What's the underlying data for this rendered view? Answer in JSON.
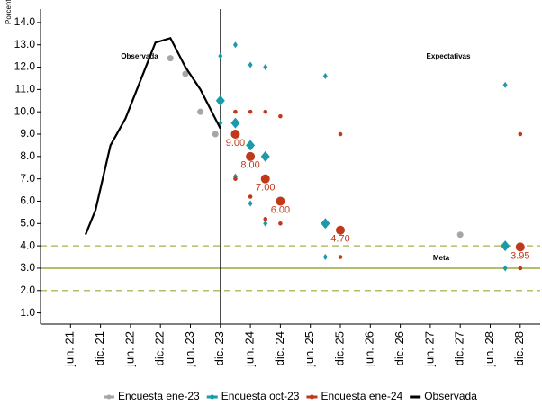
{
  "chart_data": {
    "type": "scatter",
    "y_label": "Porcentaje",
    "annotations": {
      "observed": "Observada",
      "expectations": "Expectativas",
      "target": "Meta"
    },
    "target_line": 3,
    "band_lines": [
      2,
      4
    ],
    "vline": "2023-12",
    "xlim": [
      "2020-12",
      "2029-04"
    ],
    "xticks": [
      {
        "value": "2021-06",
        "label": "jun. 21"
      },
      {
        "value": "2021-12",
        "label": "dic. 21"
      },
      {
        "value": "2022-06",
        "label": "jun. 22"
      },
      {
        "value": "2022-12",
        "label": "dic. 22"
      },
      {
        "value": "2023-06",
        "label": "jun. 23"
      },
      {
        "value": "2023-12",
        "label": "dic. 23"
      },
      {
        "value": "2024-06",
        "label": "jun. 24"
      },
      {
        "value": "2024-12",
        "label": "dic. 24"
      },
      {
        "value": "2025-06",
        "label": "jun. 25"
      },
      {
        "value": "2025-12",
        "label": "dic. 25"
      },
      {
        "value": "2026-06",
        "label": "jun. 26"
      },
      {
        "value": "2026-12",
        "label": "dic. 26"
      },
      {
        "value": "2027-06",
        "label": "jun. 27"
      },
      {
        "value": "2027-12",
        "label": "dic. 27"
      },
      {
        "value": "2028-06",
        "label": "jun. 28"
      },
      {
        "value": "2028-12",
        "label": "dic. 28"
      }
    ],
    "ylim": [
      0.5,
      14.6
    ],
    "yticks": [
      {
        "value": 1,
        "label": "1.0"
      },
      {
        "value": 2,
        "label": "2.0"
      },
      {
        "value": 3,
        "label": "3.0"
      },
      {
        "value": 4,
        "label": "4.0"
      },
      {
        "value": 5,
        "label": "5.0"
      },
      {
        "value": 6,
        "label": "6.0"
      },
      {
        "value": 7,
        "label": "7.0"
      },
      {
        "value": 8,
        "label": "8.0"
      },
      {
        "value": 9,
        "label": "9.0"
      },
      {
        "value": 10,
        "label": "10.0"
      },
      {
        "value": 11,
        "label": "11.0"
      },
      {
        "value": 12,
        "label": "12.0"
      },
      {
        "value": 13,
        "label": "13.0"
      },
      {
        "value": 14,
        "label": "14.0"
      }
    ],
    "series": [
      {
        "name": "Encuesta ene-23",
        "color": "#a6a6a6",
        "marker": "circle",
        "x": [
          "2023-02",
          "2023-05",
          "2023-08",
          "2023-11",
          "2027-12"
        ],
        "values": [
          12.4,
          11.7,
          10.0,
          9.0,
          4.5
        ]
      },
      {
        "name": "Encuesta oct-23",
        "color": "#1b9aaa",
        "marker": "diamond",
        "x": [
          "2023-12",
          "2024-03",
          "2024-06",
          "2024-09",
          "2025-09",
          "2028-09"
        ],
        "values": [
          10.5,
          9.5,
          8.5,
          8.0,
          5.0,
          4.0
        ],
        "low": [
          9.5,
          7.1,
          5.9,
          5.0,
          3.5,
          3.0
        ],
        "high": [
          12.5,
          13.0,
          12.1,
          12.0,
          11.6,
          11.2
        ]
      },
      {
        "name": "Encuesta ene-24",
        "color": "#c0391b",
        "marker": "circle",
        "x": [
          "2024-03",
          "2024-06",
          "2024-09",
          "2024-12",
          "2025-12",
          "2028-12"
        ],
        "values": [
          9.0,
          8.0,
          7.0,
          6.0,
          4.7,
          3.95
        ],
        "value_labels": [
          "9.00",
          "8.00",
          "7.00",
          "6.00",
          "4.70",
          "3.95"
        ],
        "low": [
          7.0,
          6.2,
          5.2,
          5.0,
          3.5,
          3.0
        ],
        "high": [
          10.0,
          10.0,
          10.0,
          9.8,
          9.0,
          9.0
        ]
      },
      {
        "name": "Observada",
        "color": "#000000",
        "marker": "line",
        "x": [
          "2021-09",
          "2021-11",
          "2022-02",
          "2022-05",
          "2022-08",
          "2022-11",
          "2023-02",
          "2023-05",
          "2023-08",
          "2023-12"
        ],
        "values": [
          4.5,
          5.6,
          8.5,
          9.7,
          11.4,
          13.1,
          13.3,
          12.0,
          11.0,
          9.25
        ]
      }
    ]
  }
}
